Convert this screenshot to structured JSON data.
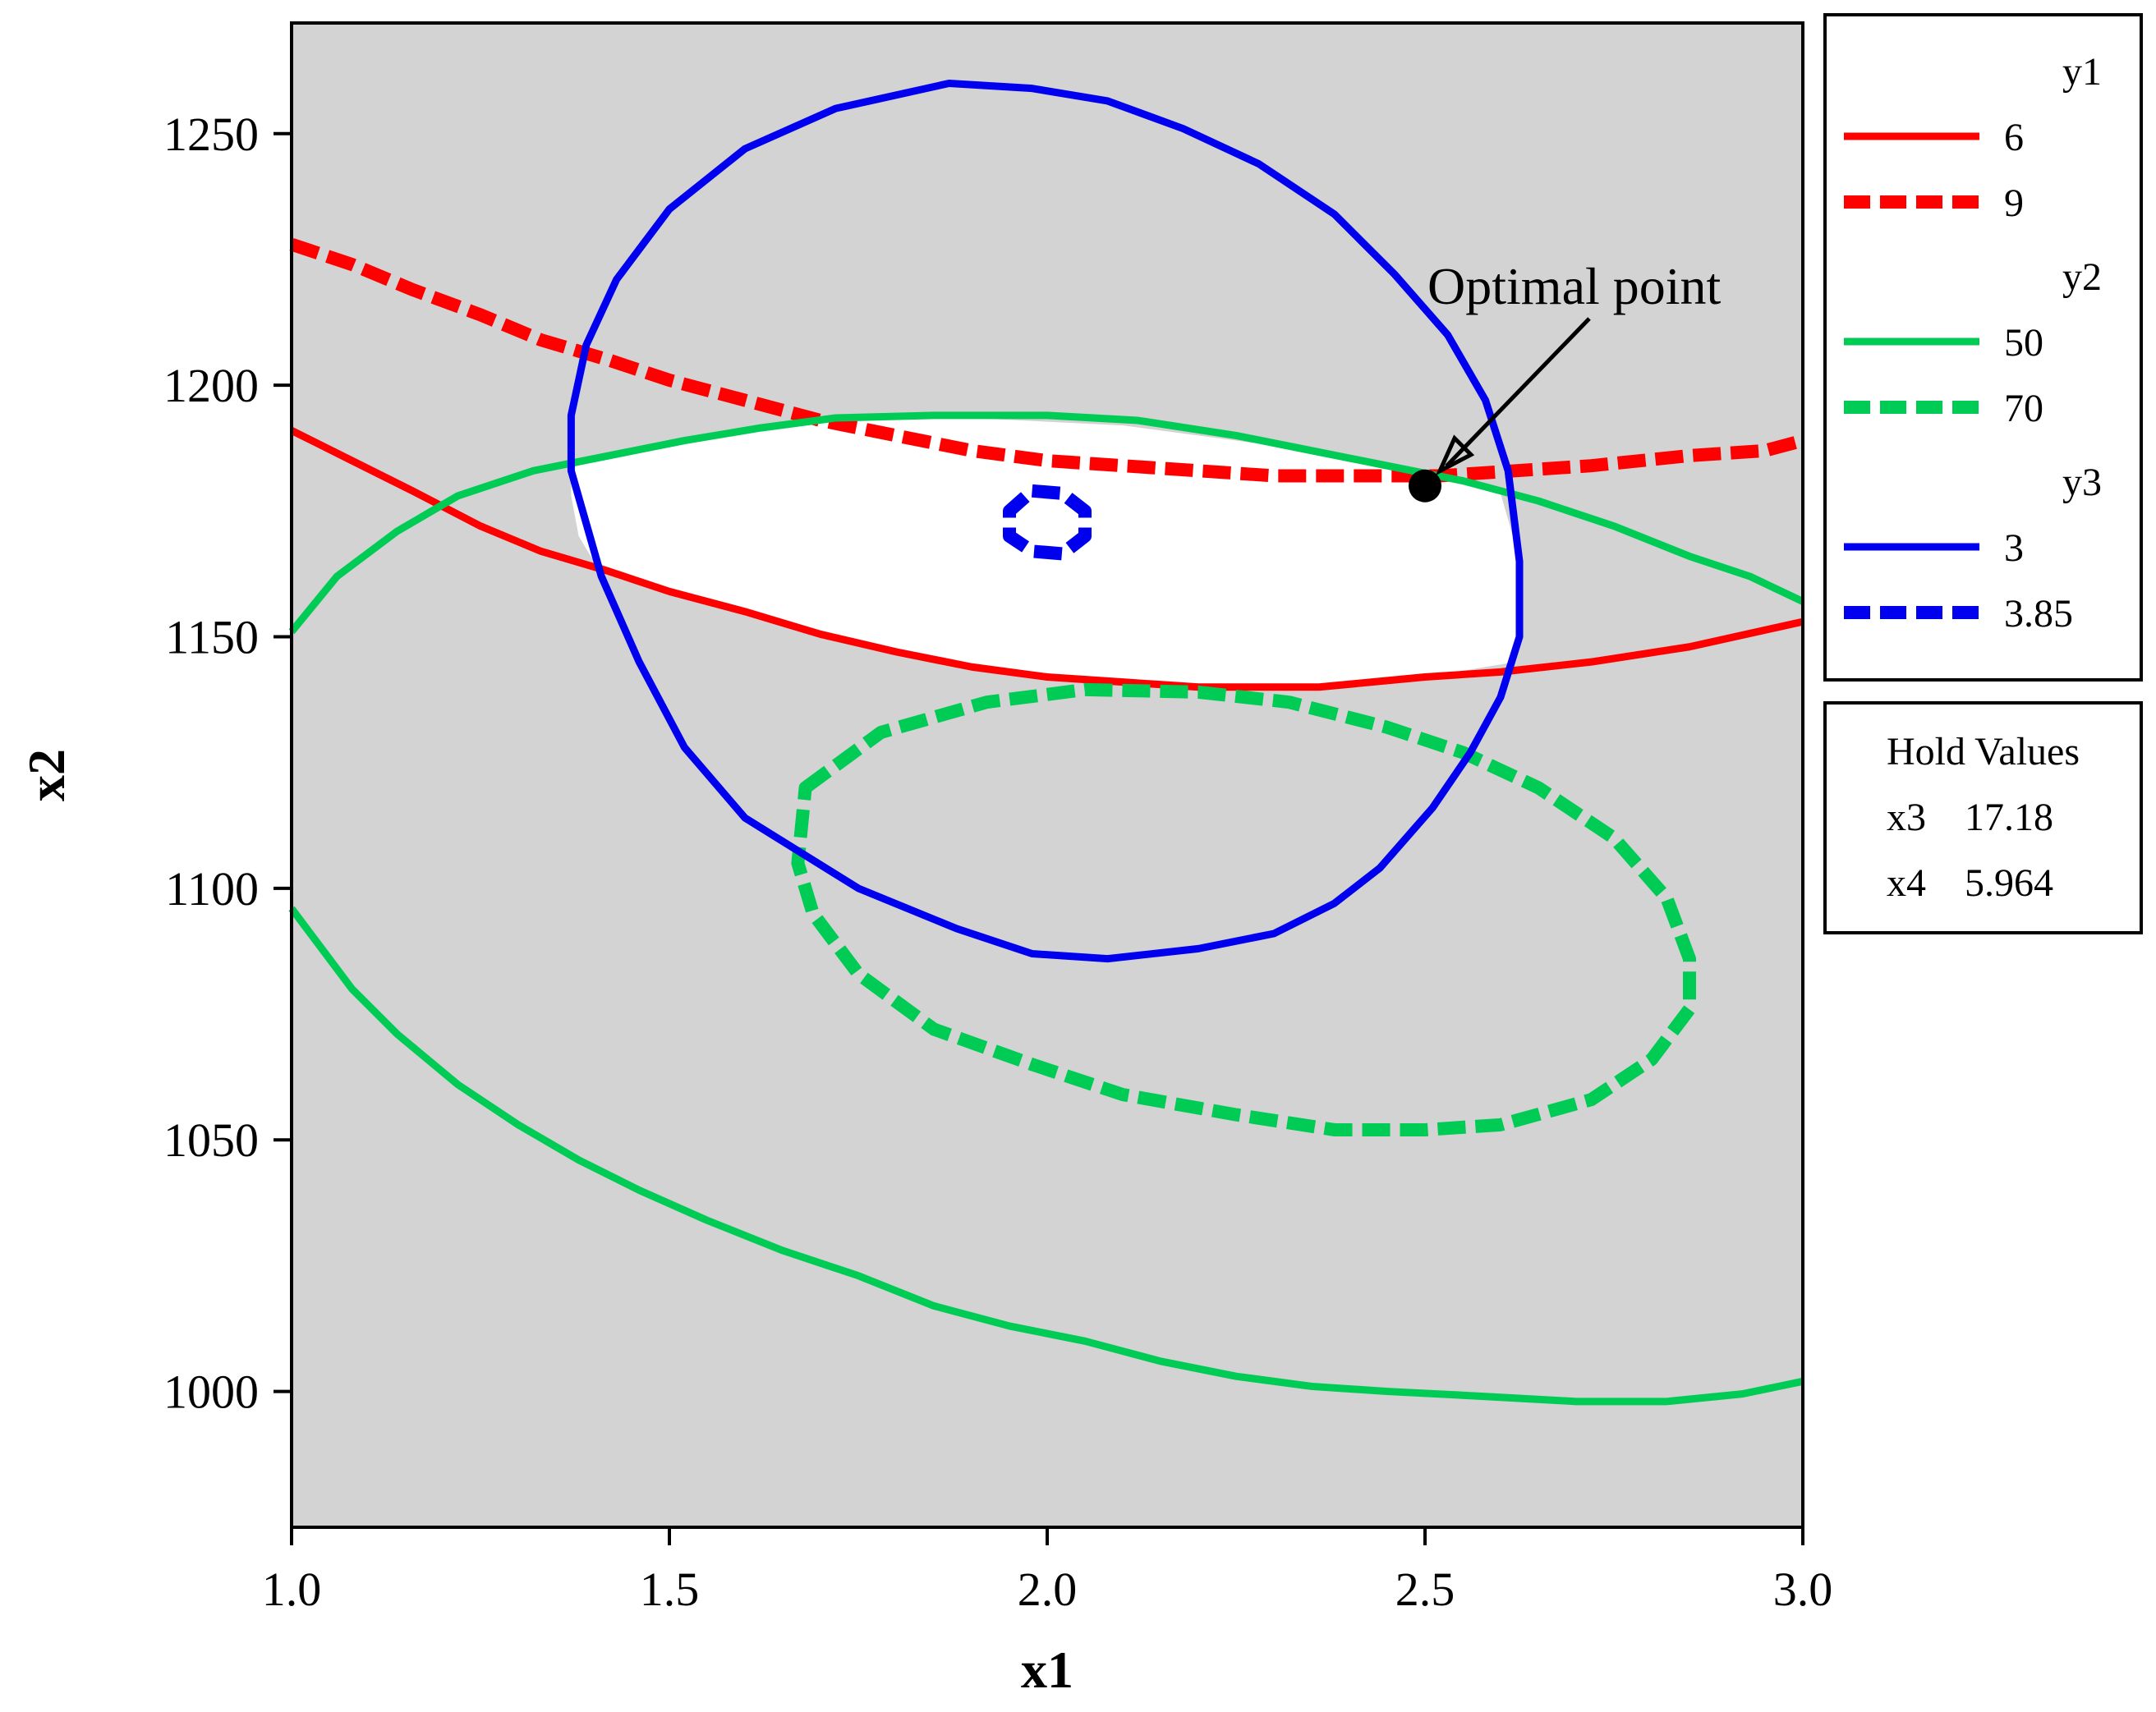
{
  "chart_data": {
    "type": "line",
    "title": "",
    "xlabel": "x1",
    "ylabel": "x2",
    "xlim": [
      1.0,
      3.0
    ],
    "ylim": [
      973,
      1272
    ],
    "xticks": [
      1.0,
      1.5,
      2.0,
      2.5,
      3.0
    ],
    "xtick_labels": [
      "1.0",
      "1.5",
      "2.0",
      "2.5",
      "3.0"
    ],
    "yticks": [
      1000,
      1050,
      1100,
      1150,
      1200,
      1250
    ],
    "ytick_labels": [
      "1000",
      "1050",
      "1100",
      "1150",
      "1200",
      "1250"
    ],
    "grid": false,
    "plot_background": "#d3d3d3",
    "feasible_region_color": "#ffffff",
    "legend_placement": "right",
    "legend_groups": [
      {
        "title": "y1",
        "items": [
          {
            "label": "6",
            "color": "#ff0000",
            "dashed": false
          },
          {
            "label": "9",
            "color": "#ff0000",
            "dashed": true
          }
        ]
      },
      {
        "title": "y2",
        "items": [
          {
            "label": "50",
            "color": "#00cc55",
            "dashed": false
          },
          {
            "label": "70",
            "color": "#00cc55",
            "dashed": true
          }
        ]
      },
      {
        "title": "y3",
        "items": [
          {
            "label": "3",
            "color": "#0000ee",
            "dashed": false
          },
          {
            "label": "3.85",
            "color": "#0000ee",
            "dashed": true
          }
        ]
      }
    ],
    "hold_values": {
      "title": "Hold Values",
      "rows": [
        {
          "name": "x3",
          "value": "17.18"
        },
        {
          "name": "x4",
          "value": "5.964"
        }
      ]
    },
    "optimal_point": {
      "label": "Optimal point",
      "x": 2.5,
      "y": 1180
    },
    "feasible_region": [
      [
        1.37,
        1185
      ],
      [
        1.5,
        1189
      ],
      [
        1.7,
        1193
      ],
      [
        1.9,
        1193.5
      ],
      [
        2.1,
        1192
      ],
      [
        2.3,
        1188
      ],
      [
        2.5,
        1182
      ],
      [
        2.6,
        1178.5
      ],
      [
        2.62,
        1168
      ],
      [
        2.625,
        1155
      ],
      [
        2.62,
        1145
      ],
      [
        2.5,
        1142
      ],
      [
        2.36,
        1140
      ],
      [
        2.24,
        1140
      ],
      [
        2.1,
        1141
      ],
      [
        1.96,
        1143
      ],
      [
        1.85,
        1145
      ],
      [
        1.6,
        1155
      ],
      [
        1.5,
        1159
      ],
      [
        1.4,
        1165
      ],
      [
        1.38,
        1170
      ],
      [
        1.37,
        1178
      ]
    ],
    "series": [
      {
        "legend_group": "y1",
        "label": "6",
        "color": "#ff0000",
        "dashed": false,
        "closed": false,
        "points": [
          [
            1.0,
            1191
          ],
          [
            1.08,
            1185
          ],
          [
            1.16,
            1179
          ],
          [
            1.25,
            1172
          ],
          [
            1.33,
            1167
          ],
          [
            1.42,
            1163
          ],
          [
            1.5,
            1159
          ],
          [
            1.6,
            1155
          ],
          [
            1.7,
            1150.5
          ],
          [
            1.8,
            1147
          ],
          [
            1.9,
            1144
          ],
          [
            2.0,
            1142
          ],
          [
            2.1,
            1141
          ],
          [
            2.2,
            1140
          ],
          [
            2.36,
            1140
          ],
          [
            2.5,
            1142
          ],
          [
            2.6,
            1143
          ],
          [
            2.72,
            1145
          ],
          [
            2.85,
            1148
          ],
          [
            3.0,
            1153
          ]
        ]
      },
      {
        "legend_group": "y1",
        "label": "9",
        "color": "#ff0000",
        "dashed": true,
        "closed": false,
        "points": [
          [
            1.0,
            1228
          ],
          [
            1.08,
            1224
          ],
          [
            1.16,
            1219
          ],
          [
            1.25,
            1214
          ],
          [
            1.33,
            1209
          ],
          [
            1.42,
            1205
          ],
          [
            1.5,
            1201
          ],
          [
            1.6,
            1197
          ],
          [
            1.7,
            1193
          ],
          [
            1.8,
            1190
          ],
          [
            1.9,
            1187
          ],
          [
            2.0,
            1185
          ],
          [
            2.1,
            1184
          ],
          [
            2.2,
            1183
          ],
          [
            2.3,
            1182
          ],
          [
            2.42,
            1182
          ],
          [
            2.52,
            1182
          ],
          [
            2.62,
            1183
          ],
          [
            2.72,
            1184
          ],
          [
            2.85,
            1186
          ],
          [
            2.95,
            1187
          ],
          [
            3.0,
            1189
          ]
        ]
      },
      {
        "legend_group": "y2",
        "label": "50",
        "color": "#00cc55",
        "dashed": false,
        "closed": false,
        "points": [
          [
            1.0,
            1151
          ],
          [
            1.06,
            1162
          ],
          [
            1.14,
            1171
          ],
          [
            1.22,
            1178
          ],
          [
            1.32,
            1183
          ],
          [
            1.42,
            1186
          ],
          [
            1.52,
            1189
          ],
          [
            1.62,
            1191.5
          ],
          [
            1.72,
            1193.5
          ],
          [
            1.85,
            1194
          ],
          [
            2.0,
            1194
          ],
          [
            2.12,
            1193
          ],
          [
            2.25,
            1190
          ],
          [
            2.35,
            1187
          ],
          [
            2.45,
            1184
          ],
          [
            2.55,
            1181
          ],
          [
            2.65,
            1177
          ],
          [
            2.75,
            1172
          ],
          [
            2.85,
            1166
          ],
          [
            2.93,
            1162
          ],
          [
            3.0,
            1157
          ]
        ]
      },
      {
        "legend_group": "y2",
        "label": "50",
        "color": "#00cc55",
        "dashed": false,
        "closed": false,
        "points": [
          [
            1.0,
            1096
          ],
          [
            1.08,
            1080
          ],
          [
            1.14,
            1071
          ],
          [
            1.22,
            1061
          ],
          [
            1.3,
            1053
          ],
          [
            1.38,
            1046
          ],
          [
            1.46,
            1040
          ],
          [
            1.55,
            1034
          ],
          [
            1.65,
            1028
          ],
          [
            1.75,
            1023
          ],
          [
            1.85,
            1017
          ],
          [
            1.95,
            1013
          ],
          [
            2.05,
            1010
          ],
          [
            2.15,
            1006
          ],
          [
            2.25,
            1003
          ],
          [
            2.35,
            1001
          ],
          [
            2.45,
            1000
          ],
          [
            2.58,
            999
          ],
          [
            2.7,
            998
          ],
          [
            2.82,
            998
          ],
          [
            2.92,
            999.5
          ],
          [
            3.0,
            1002
          ]
        ]
      },
      {
        "legend_group": "y2",
        "label": "70",
        "color": "#00cc55",
        "dashed": true,
        "closed": true,
        "points": [
          [
            1.68,
            1120
          ],
          [
            1.78,
            1131
          ],
          [
            1.92,
            1137
          ],
          [
            2.05,
            1139.5
          ],
          [
            2.2,
            1139
          ],
          [
            2.32,
            1137
          ],
          [
            2.45,
            1132
          ],
          [
            2.55,
            1127
          ],
          [
            2.65,
            1120
          ],
          [
            2.75,
            1110
          ],
          [
            2.82,
            1098
          ],
          [
            2.85,
            1086
          ],
          [
            2.85,
            1076
          ],
          [
            2.8,
            1066
          ],
          [
            2.72,
            1058
          ],
          [
            2.6,
            1053
          ],
          [
            2.5,
            1052
          ],
          [
            2.38,
            1052
          ],
          [
            2.25,
            1055
          ],
          [
            2.1,
            1059
          ],
          [
            1.98,
            1065
          ],
          [
            1.85,
            1072
          ],
          [
            1.75,
            1083
          ],
          [
            1.69,
            1095
          ],
          [
            1.67,
            1105
          ]
        ]
      },
      {
        "legend_group": "y3",
        "label": "3",
        "color": "#0000ee",
        "dashed": false,
        "closed": true,
        "points": [
          [
            1.87,
            1260
          ],
          [
            1.98,
            1259
          ],
          [
            2.08,
            1256.5
          ],
          [
            2.18,
            1251
          ],
          [
            2.28,
            1244
          ],
          [
            2.38,
            1234
          ],
          [
            2.46,
            1222
          ],
          [
            2.53,
            1210
          ],
          [
            2.58,
            1197
          ],
          [
            2.61,
            1183
          ],
          [
            2.625,
            1165
          ],
          [
            2.625,
            1150
          ],
          [
            2.6,
            1138
          ],
          [
            2.56,
            1127
          ],
          [
            2.51,
            1116
          ],
          [
            2.44,
            1104
          ],
          [
            2.38,
            1097
          ],
          [
            2.3,
            1091
          ],
          [
            2.2,
            1088
          ],
          [
            2.08,
            1086
          ],
          [
            1.98,
            1087
          ],
          [
            1.88,
            1092
          ],
          [
            1.75,
            1100
          ],
          [
            1.6,
            1114
          ],
          [
            1.52,
            1128
          ],
          [
            1.46,
            1145
          ],
          [
            1.41,
            1162
          ],
          [
            1.37,
            1183
          ],
          [
            1.37,
            1194
          ],
          [
            1.39,
            1208
          ],
          [
            1.43,
            1221
          ],
          [
            1.5,
            1235
          ],
          [
            1.6,
            1247
          ],
          [
            1.72,
            1255
          ]
        ]
      },
      {
        "legend_group": "y3",
        "label": "3.85",
        "color": "#0000ee",
        "dashed": true,
        "closed": true,
        "points": [
          [
            1.98,
            1179
          ],
          [
            2.02,
            1178.5
          ],
          [
            2.05,
            1175
          ],
          [
            2.05,
            1170
          ],
          [
            2.02,
            1166.5
          ],
          [
            1.98,
            1167
          ],
          [
            1.95,
            1170
          ],
          [
            1.95,
            1175
          ]
        ]
      }
    ]
  }
}
